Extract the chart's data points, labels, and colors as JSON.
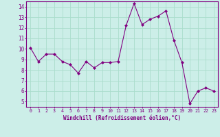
{
  "x": [
    0,
    1,
    2,
    3,
    4,
    5,
    6,
    7,
    8,
    9,
    10,
    11,
    12,
    13,
    14,
    15,
    16,
    17,
    18,
    19,
    20,
    21,
    22,
    23
  ],
  "y": [
    10.1,
    8.8,
    9.5,
    9.5,
    8.8,
    8.5,
    7.7,
    8.8,
    8.2,
    8.7,
    8.7,
    8.8,
    12.2,
    14.3,
    12.3,
    12.8,
    13.1,
    13.6,
    10.8,
    8.7,
    4.8,
    6.0,
    6.3,
    6.0
  ],
  "line_color": "#800080",
  "marker_color": "#800080",
  "bg_color": "#cceee8",
  "grid_color": "#aaddcc",
  "xlabel": "Windchill (Refroidissement éolien,°C)",
  "xlim": [
    -0.5,
    23.5
  ],
  "ylim": [
    4.5,
    14.5
  ],
  "yticks": [
    5,
    6,
    7,
    8,
    9,
    10,
    11,
    12,
    13,
    14
  ],
  "xticks": [
    0,
    1,
    2,
    3,
    4,
    5,
    6,
    7,
    8,
    9,
    10,
    11,
    12,
    13,
    14,
    15,
    16,
    17,
    18,
    19,
    20,
    21,
    22,
    23
  ],
  "tick_color": "#800080",
  "label_color": "#800080",
  "spine_color": "#800080",
  "axis_bg": "#cceee8"
}
